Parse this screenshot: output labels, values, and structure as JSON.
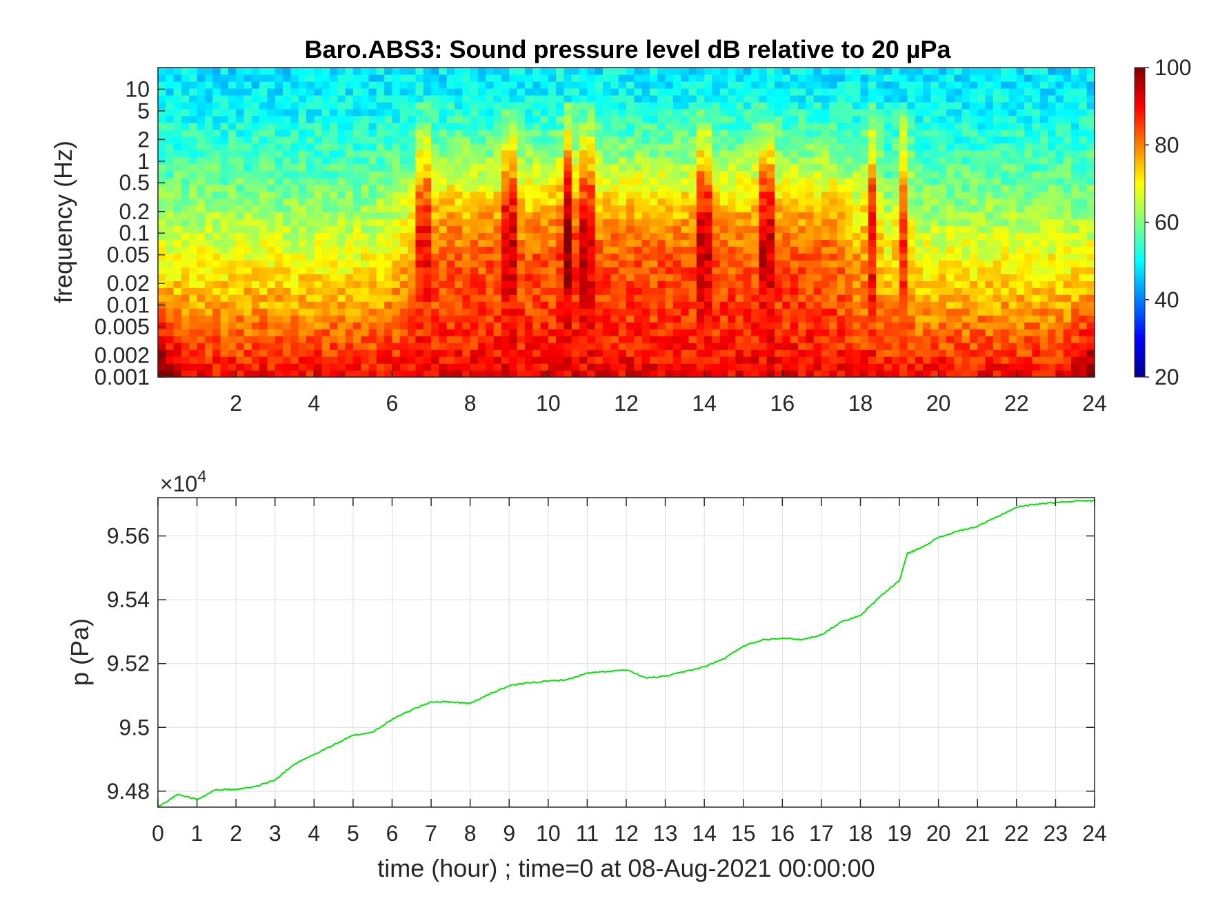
{
  "figure": {
    "title": "Baro.ABS3: Sound pressure level dB relative to 20 µPa"
  },
  "chart_data": [
    {
      "type": "heatmap",
      "title": "Baro.ABS3: Sound pressure level dB relative to 20 µPa",
      "xlabel": "",
      "ylabel": "frequency (Hz)",
      "xlim": [
        0,
        24
      ],
      "ylim": [
        0.001,
        20
      ],
      "y_scale": "log",
      "x_ticks": [
        "2",
        "4",
        "6",
        "8",
        "10",
        "12",
        "14",
        "16",
        "18",
        "20",
        "22",
        "24"
      ],
      "y_ticks": [
        "0.001",
        "0.002",
        "0.005",
        "0.01",
        "0.02",
        "0.05",
        "0.1",
        "0.2",
        "0.5",
        "1",
        "2",
        "5",
        "10"
      ],
      "colorbar": {
        "label": "",
        "range": [
          20,
          100
        ],
        "ticks": [
          "20",
          "40",
          "60",
          "80",
          "100"
        ],
        "colormap": "jet"
      },
      "summary": {
        "low_freq_level_db": 90,
        "high_freq_level_db": 48,
        "bursts_hours": [
          6.8,
          9.0,
          10.5,
          11.0,
          14.0,
          15.6,
          18.3,
          19.1
        ],
        "active_period_hours": [
          7.5,
          17.0
        ]
      },
      "grid": false
    },
    {
      "type": "line",
      "title": "",
      "xlabel": "time (hour) ; time=0 at 08-Aug-2021 00:00:00",
      "ylabel": "p (Pa)",
      "xlim": [
        0,
        24
      ],
      "ylim": [
        94750,
        95720
      ],
      "y_exponent_label": "×10",
      "y_exponent": "4",
      "x_ticks": [
        "0",
        "1",
        "2",
        "3",
        "4",
        "5",
        "6",
        "7",
        "8",
        "9",
        "10",
        "11",
        "12",
        "13",
        "14",
        "15",
        "16",
        "17",
        "18",
        "19",
        "20",
        "21",
        "22",
        "23",
        "24"
      ],
      "y_ticks": [
        "9.48",
        "9.5",
        "9.52",
        "9.54",
        "9.56"
      ],
      "grid": true,
      "series": [
        {
          "color": "#00e600",
          "x": [
            0,
            0.5,
            1,
            1.5,
            2,
            2.5,
            3,
            3.5,
            4,
            4.5,
            5,
            5.5,
            6,
            6.5,
            7,
            7.5,
            8,
            8.5,
            9,
            9.5,
            10,
            10.5,
            11,
            11.5,
            12,
            12.5,
            13,
            13.5,
            14,
            14.5,
            15,
            15.5,
            16,
            16.5,
            17,
            17.5,
            18,
            18.5,
            19,
            19.2,
            19.5,
            20,
            20.5,
            21,
            21.5,
            22,
            22.5,
            23,
            23.5,
            24
          ],
          "y": [
            94750,
            94790,
            94775,
            94805,
            94805,
            94815,
            94835,
            94885,
            94915,
            94945,
            94975,
            94985,
            95025,
            95055,
            95080,
            95080,
            95075,
            95105,
            95130,
            95140,
            95145,
            95150,
            95170,
            95175,
            95180,
            95155,
            95160,
            95175,
            95190,
            95215,
            95255,
            95275,
            95280,
            95275,
            95290,
            95330,
            95350,
            95410,
            95460,
            95545,
            95560,
            95595,
            95615,
            95630,
            95660,
            95690,
            95700,
            95705,
            95710,
            95710
          ]
        }
      ]
    }
  ]
}
